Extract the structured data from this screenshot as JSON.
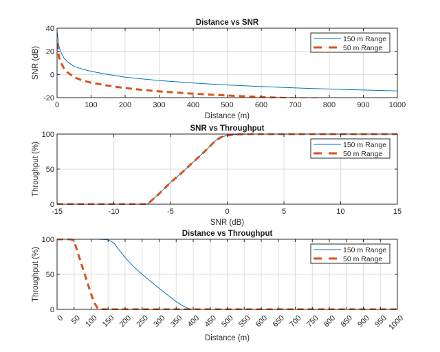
{
  "chart_data": [
    {
      "type": "line",
      "title": "Distance vs SNR",
      "xlabel": "Distance (m)",
      "ylabel": "SNR (dB)",
      "xlim": [
        0,
        1000
      ],
      "ylim": [
        -20,
        40
      ],
      "xticks": [
        0,
        100,
        200,
        300,
        400,
        500,
        600,
        700,
        800,
        900,
        1000
      ],
      "yticks": [
        -20,
        0,
        20,
        40
      ],
      "xtick_labels": [
        "0",
        "100",
        "200",
        "300",
        "400",
        "500",
        "600",
        "700",
        "800",
        "900",
        "1000"
      ],
      "ytick_labels": [
        "-20",
        "0",
        "20",
        "40"
      ],
      "grid": true,
      "legend_position": "top-right",
      "series": [
        {
          "name": "150 m Range",
          "style": "solid",
          "color": "#0072BD",
          "x": [
            1,
            5,
            10,
            20,
            30,
            50,
            75,
            100,
            150,
            200,
            250,
            300,
            400,
            500,
            600,
            700,
            800,
            900,
            1000
          ],
          "y": [
            36,
            25,
            20,
            14.5,
            11,
            7,
            4.6,
            2.7,
            0,
            -2.3,
            -3.8,
            -5.2,
            -7.4,
            -9.1,
            -10.4,
            -11.6,
            -12.6,
            -13.4,
            -14.2
          ]
        },
        {
          "name": "50 m Range",
          "style": "dashed",
          "color": "#D95319",
          "x": [
            1,
            5,
            10,
            20,
            30,
            50,
            75,
            100,
            150,
            200,
            250,
            300,
            400,
            500,
            600,
            700,
            800,
            900,
            1000
          ],
          "y": [
            27,
            16,
            11,
            5.5,
            2,
            -2.4,
            -5.2,
            -7.1,
            -9.7,
            -11.7,
            -13.3,
            -14.6,
            -16.6,
            -18.2,
            -19.5,
            -20.6,
            -21.5,
            -22.3,
            -23
          ]
        }
      ]
    },
    {
      "type": "line",
      "title": "SNR vs Throughput",
      "xlabel": "SNR (dB)",
      "ylabel": "Throughput (%)",
      "xlim": [
        -15,
        15
      ],
      "ylim": [
        0,
        100
      ],
      "xticks": [
        -15,
        -10,
        -5,
        0,
        5,
        10,
        15
      ],
      "yticks": [
        0,
        50,
        100
      ],
      "xtick_labels": [
        "-15",
        "-10",
        "-5",
        "0",
        "5",
        "10",
        "15"
      ],
      "ytick_labels": [
        "0",
        "50",
        "100"
      ],
      "grid": true,
      "legend_position": "top-right",
      "series": [
        {
          "name": "150 m Range",
          "style": "solid",
          "color": "#0072BD",
          "x": [
            -15,
            -10,
            -7.2,
            -7,
            -6,
            -5,
            -4,
            -3,
            -2,
            -1,
            -0.5,
            0,
            0.5,
            1,
            2,
            3,
            5,
            10,
            15
          ],
          "y": [
            0,
            0,
            0,
            0.5,
            15,
            31,
            45,
            60,
            75,
            91,
            96,
            98,
            99,
            99.5,
            100,
            100,
            100,
            100,
            100
          ]
        },
        {
          "name": "50 m Range",
          "style": "dashed",
          "color": "#D95319",
          "x": [
            -15,
            -10,
            -7.2,
            -7,
            -6,
            -5,
            -4,
            -3,
            -2,
            -1,
            -0.5,
            0,
            0.5,
            1,
            2,
            3,
            5,
            10,
            15
          ],
          "y": [
            0,
            0,
            0,
            0.5,
            15,
            31,
            45,
            60,
            75,
            91,
            96,
            98,
            99,
            99.5,
            100,
            100,
            100,
            100,
            100
          ]
        }
      ]
    },
    {
      "type": "line",
      "title": "Distance vs Throughput",
      "xlabel": "Distance (m)",
      "ylabel": "Throughput (%)",
      "xlim": [
        0,
        1000
      ],
      "ylim": [
        0,
        100
      ],
      "xticks": [
        0,
        50,
        100,
        150,
        200,
        250,
        300,
        350,
        400,
        450,
        500,
        550,
        600,
        650,
        700,
        750,
        800,
        850,
        900,
        950,
        1000
      ],
      "yticks": [
        0,
        50,
        100
      ],
      "xtick_labels": [
        "0",
        "50",
        "100",
        "150",
        "200",
        "250",
        "300",
        "350",
        "400",
        "450",
        "500",
        "550",
        "600",
        "650",
        "700",
        "750",
        "800",
        "850",
        "900",
        "950",
        "1000"
      ],
      "ytick_labels": [
        "0",
        "50",
        "100"
      ],
      "xtick_rotation": 45,
      "grid": true,
      "legend_position": "top-right",
      "series": [
        {
          "name": "150 m Range",
          "style": "solid",
          "color": "#0072BD",
          "x": [
            0,
            50,
            100,
            120,
            140,
            150,
            160,
            170,
            180,
            190,
            200,
            225,
            250,
            275,
            300,
            325,
            350,
            370,
            385,
            395,
            400,
            420,
            450,
            1000
          ],
          "y": [
            100,
            100,
            100,
            100,
            99.5,
            99,
            97,
            93,
            86,
            80,
            74,
            61,
            50,
            40,
            30,
            20.5,
            11,
            5,
            1.5,
            0.5,
            0,
            0,
            0,
            0
          ]
        },
        {
          "name": "50 m Range",
          "style": "dashed",
          "color": "#D95319",
          "x": [
            0,
            30,
            40,
            45,
            50,
            55,
            60,
            70,
            80,
            90,
            100,
            110,
            120,
            125,
            130,
            150,
            200,
            1000
          ],
          "y": [
            100,
            100,
            100,
            99,
            96,
            90,
            82,
            67,
            52,
            37,
            22,
            9,
            1,
            0,
            0,
            0,
            0,
            0
          ]
        }
      ]
    }
  ]
}
